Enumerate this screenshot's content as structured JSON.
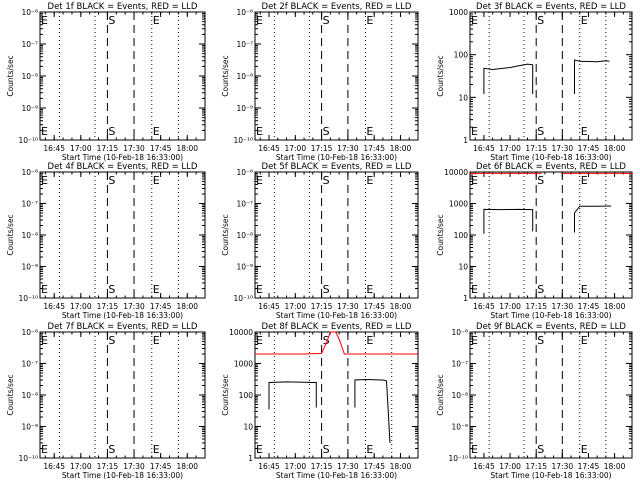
{
  "chart_data": [
    {
      "type": "line",
      "title": "Det 1f BLACK = Events, RED = LLD",
      "xlabel": "Start Time (10-Feb-18 16:33:00)",
      "ylabel": "Counts/sec",
      "yscale": "log",
      "ylim": [
        1e-10,
        1e-06
      ],
      "yticks": [
        "10⁻¹⁰",
        "10⁻⁹",
        "10⁻⁸",
        "10⁻⁷",
        "10⁻⁶"
      ],
      "xticks": [
        "16:45",
        "17:00",
        "17:15",
        "17:30",
        "17:45",
        "18:00"
      ],
      "series": []
    },
    {
      "type": "line",
      "title": "Det 2f BLACK = Events, RED = LLD",
      "xlabel": "Start Time (10-Feb-18 16:33:00)",
      "ylabel": "Counts/sec",
      "yscale": "log",
      "ylim": [
        1e-10,
        1e-06
      ],
      "yticks": [
        "10⁻¹⁰",
        "10⁻⁹",
        "10⁻⁸",
        "10⁻⁷",
        "10⁻⁶"
      ],
      "xticks": [
        "16:45",
        "17:00",
        "17:15",
        "17:30",
        "17:45",
        "18:00"
      ],
      "series": []
    },
    {
      "type": "line",
      "title": "Det 3f BLACK = Events, RED = LLD",
      "xlabel": "Start Time (10-Feb-18 16:33:00)",
      "ylabel": "Counts/sec",
      "yscale": "log",
      "ylim": [
        1,
        1000
      ],
      "yticks": [
        "1",
        "10",
        "100",
        "1000"
      ],
      "xticks": [
        "16:45",
        "17:00",
        "17:15",
        "17:30",
        "17:45",
        "18:00"
      ],
      "series": [
        {
          "color": "#000000",
          "segments": [
            [
              [
                "16:45",
                12
              ],
              [
                "16:45",
                48
              ],
              [
                "16:50",
                45
              ],
              [
                "17:00",
                50
              ],
              [
                "17:05",
                55
              ],
              [
                "17:10",
                60
              ],
              [
                "17:13",
                58
              ],
              [
                "17:13",
                12
              ]
            ],
            [
              [
                "17:37",
                12
              ],
              [
                "17:37",
                75
              ],
              [
                "17:40",
                70
              ],
              [
                "17:50",
                68
              ],
              [
                "17:55",
                72
              ],
              [
                "17:57",
                70
              ]
            ]
          ]
        }
      ]
    },
    {
      "type": "line",
      "title": "Det 4f BLACK = Events, RED = LLD",
      "xlabel": "Start Time (10-Feb-18 16:33:00)",
      "ylabel": "Counts/sec",
      "yscale": "log",
      "ylim": [
        1e-10,
        1e-06
      ],
      "yticks": [
        "10⁻¹⁰",
        "10⁻⁹",
        "10⁻⁸",
        "10⁻⁷",
        "10⁻⁶"
      ],
      "xticks": [
        "16:45",
        "17:00",
        "17:15",
        "17:30",
        "17:45",
        "18:00"
      ],
      "series": []
    },
    {
      "type": "line",
      "title": "Det 5f BLACK = Events, RED = LLD",
      "xlabel": "Start Time (10-Feb-18 16:33:00)",
      "ylabel": "Counts/sec",
      "yscale": "log",
      "ylim": [
        1e-10,
        1e-06
      ],
      "yticks": [
        "10⁻¹⁰",
        "10⁻⁹",
        "10⁻⁸",
        "10⁻⁷",
        "10⁻⁶"
      ],
      "xticks": [
        "16:45",
        "17:00",
        "17:15",
        "17:30",
        "17:45",
        "18:00"
      ],
      "series": []
    },
    {
      "type": "line",
      "title": "Det 6f BLACK = Events, RED = LLD",
      "xlabel": "Start Time (10-Feb-18 16:33:00)",
      "ylabel": "Counts/sec",
      "yscale": "log",
      "ylim": [
        1,
        10000
      ],
      "yticks": [
        "1",
        "10",
        "100",
        "1000",
        "10000"
      ],
      "xticks": [
        "16:45",
        "17:00",
        "17:15",
        "17:30",
        "17:45",
        "18:00"
      ],
      "series": [
        {
          "color": "#000000",
          "segments": [
            [
              [
                "16:45",
                110
              ],
              [
                "16:45",
                650
              ],
              [
                "16:55",
                640
              ],
              [
                "17:05",
                650
              ],
              [
                "17:13",
                640
              ],
              [
                "17:13",
                130
              ]
            ],
            [
              [
                "17:37",
                120
              ],
              [
                "17:37",
                500
              ],
              [
                "17:40",
                820
              ],
              [
                "17:50",
                820
              ],
              [
                "17:58",
                830
              ]
            ]
          ]
        },
        {
          "color": "#ff0000",
          "segments": [
            [
              [
                "16:37",
                9000
              ],
              [
                "16:45",
                9000
              ],
              [
                "17:00",
                9000
              ],
              [
                "17:15",
                9000
              ],
              [
                "17:18",
                9000
              ]
            ],
            [
              [
                "17:30",
                9000
              ],
              [
                "17:45",
                9000
              ],
              [
                "18:00",
                9000
              ],
              [
                "18:10",
                9000
              ]
            ]
          ]
        }
      ]
    },
    {
      "type": "line",
      "title": "Det 7f BLACK = Events, RED = LLD",
      "xlabel": "Start Time (10-Feb-18 16:33:00)",
      "ylabel": "Counts/sec",
      "yscale": "log",
      "ylim": [
        1e-10,
        1e-06
      ],
      "yticks": [
        "10⁻¹⁰",
        "10⁻⁹",
        "10⁻⁸",
        "10⁻⁷",
        "10⁻⁶"
      ],
      "xticks": [
        "16:45",
        "17:00",
        "17:15",
        "17:30",
        "17:45",
        "18:00"
      ],
      "series": []
    },
    {
      "type": "line",
      "title": "Det 8f BLACK = Events, RED = LLD",
      "xlabel": "Start Time (10-Feb-18 16:33:00)",
      "ylabel": "Counts/sec",
      "yscale": "log",
      "ylim": [
        1,
        10000
      ],
      "yticks": [
        "1",
        "10",
        "100",
        "1000",
        "10000"
      ],
      "xticks": [
        "16:45",
        "17:00",
        "17:15",
        "17:30",
        "17:45",
        "18:00"
      ],
      "series": [
        {
          "color": "#000000",
          "segments": [
            [
              [
                "16:45",
                35
              ],
              [
                "16:45",
                250
              ],
              [
                "16:55",
                260
              ],
              [
                "17:05",
                255
              ],
              [
                "17:10",
                250
              ],
              [
                "17:12",
                250
              ],
              [
                "17:12",
                40
              ]
            ],
            [
              [
                "17:34",
                40
              ],
              [
                "17:34",
                300
              ],
              [
                "17:40",
                310
              ],
              [
                "17:50",
                300
              ],
              [
                "17:52",
                280
              ],
              [
                "17:54",
                3
              ]
            ]
          ]
        },
        {
          "color": "#ff0000",
          "segments": [
            [
              [
                "16:37",
                2000
              ],
              [
                "16:50",
                2000
              ],
              [
                "17:05",
                2000
              ],
              [
                "17:15",
                2100
              ],
              [
                "17:18",
                5000
              ],
              [
                "17:20",
                10000
              ],
              [
                "17:23",
                10000
              ],
              [
                "17:25",
                6000
              ],
              [
                "17:28",
                2000
              ],
              [
                "17:45",
                2000
              ],
              [
                "18:00",
                2000
              ],
              [
                "18:10",
                2000
              ]
            ]
          ]
        }
      ]
    },
    {
      "type": "line",
      "title": "Det 9f BLACK = Events, RED = LLD",
      "xlabel": "Start Time (10-Feb-18 16:33:00)",
      "ylabel": "Counts/sec",
      "yscale": "log",
      "ylim": [
        1e-10,
        1e-06
      ],
      "yticks": [
        "10⁻¹⁰",
        "10⁻⁹",
        "10⁻⁸",
        "10⁻⁷",
        "10⁻⁶"
      ],
      "xticks": [
        "16:45",
        "17:00",
        "17:15",
        "17:30",
        "17:45",
        "18:00"
      ],
      "series": []
    }
  ],
  "xrange": [
    "16:37",
    "18:10"
  ],
  "markers": {
    "dotted": [
      "16:48",
      "17:08",
      "17:40",
      "17:55"
    ],
    "dashed": [
      "17:15",
      "17:30"
    ],
    "labels": [
      {
        "text": "E",
        "at": "16:37"
      },
      {
        "text": "S",
        "at": "17:15"
      },
      {
        "text": "E",
        "at": "17:40"
      }
    ]
  }
}
